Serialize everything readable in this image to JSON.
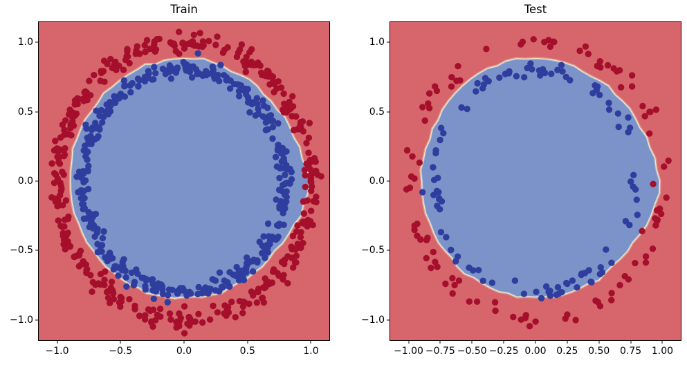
{
  "palette": {
    "background": "#ffffff",
    "axis_color": "#000000",
    "text_color": "#000000",
    "point_red": "#a50f2b",
    "point_blue": "#2f3d9e",
    "region_red": "#d6656c",
    "region_blue": "#7b93c8",
    "boundary_band_outer": "#e09a92",
    "boundary_band_mid": "#f6eec0",
    "boundary_band_inner": "#a6bedd"
  },
  "chart_data": [
    {
      "type": "scatter",
      "title": "Train",
      "xlabel": "",
      "ylabel": "",
      "xlim": [
        -1.15,
        1.15
      ],
      "ylim": [
        -1.15,
        1.15
      ],
      "grid": false,
      "legend": null,
      "x_ticks": [
        "−1.0",
        "−0.5",
        "0.0",
        "0.5",
        "1.0"
      ],
      "x_tick_values": [
        -1.0,
        -0.5,
        0.0,
        0.5,
        1.0
      ],
      "y_ticks": [
        "1.0",
        "0.5",
        "0.0",
        "−0.5",
        "−1.0"
      ],
      "y_tick_values": [
        1.0,
        0.5,
        0.0,
        -0.5,
        -1.0
      ],
      "marker_radius_px": 4.7,
      "series": [
        {
          "name": "class-0-outer-circle",
          "color": "#a50f2b",
          "ring_radius": 1.0,
          "radial_noise": 0.033,
          "n_points": 400,
          "seed": 11,
          "extra_points": []
        },
        {
          "name": "class-1-inner-circle",
          "color": "#2f3d9e",
          "ring_radius": 0.8,
          "radial_noise": 0.028,
          "n_points": 400,
          "seed": 22,
          "extra_points": [
            [
              0.11,
              0.92
            ]
          ]
        }
      ],
      "decision_boundary": {
        "outside_color": "#d6656c",
        "inside_color": "#7b93c8",
        "band_colors": [
          "#e09a92",
          "#f6eec0",
          "#a6bedd"
        ],
        "seed": 5,
        "radius_profile": [
          [
            0,
            0.975
          ],
          [
            15,
            0.93
          ],
          [
            40,
            0.885
          ],
          [
            70,
            0.875
          ],
          [
            90,
            0.875
          ],
          [
            120,
            0.88
          ],
          [
            150,
            0.885
          ],
          [
            180,
            0.89
          ],
          [
            210,
            0.87
          ],
          [
            240,
            0.845
          ],
          [
            270,
            0.835
          ],
          [
            300,
            0.845
          ],
          [
            330,
            0.88
          ],
          [
            348,
            0.95
          ]
        ]
      }
    },
    {
      "type": "scatter",
      "title": "Test",
      "xlabel": "",
      "ylabel": "",
      "xlim": [
        -1.15,
        1.15
      ],
      "ylim": [
        -1.15,
        1.15
      ],
      "grid": false,
      "legend": null,
      "x_ticks": [
        "−1.00",
        "−0.75",
        "−0.50",
        "−0.25",
        "0.00",
        "0.25",
        "0.50",
        "0.75",
        "1.00"
      ],
      "x_tick_values": [
        -1.0,
        -0.75,
        -0.5,
        -0.25,
        0.0,
        0.25,
        0.5,
        0.75,
        1.0
      ],
      "y_ticks": [
        "1.0",
        "0.5",
        "0.0",
        "−0.5",
        "−1.0"
      ],
      "y_tick_values": [
        1.0,
        0.5,
        0.0,
        -0.5,
        -1.0
      ],
      "marker_radius_px": 4.7,
      "series": [
        {
          "name": "class-0-outer-circle",
          "color": "#a50f2b",
          "ring_radius": 1.0,
          "radial_noise": 0.033,
          "n_points": 100,
          "seed": 33,
          "extra_points": [
            [
              0.84,
              -0.36
            ]
          ]
        },
        {
          "name": "class-1-inner-circle",
          "color": "#2f3d9e",
          "ring_radius": 0.8,
          "radial_noise": 0.028,
          "n_points": 100,
          "seed": 44,
          "extra_points": [
            [
              -0.89,
              -0.08
            ]
          ]
        }
      ],
      "decision_boundary": {
        "outside_color": "#d6656c",
        "inside_color": "#7b93c8",
        "band_colors": [
          "#e09a92",
          "#f6eec0",
          "#a6bedd"
        ],
        "seed": 6,
        "radius_profile": [
          [
            0,
            0.975
          ],
          [
            15,
            0.93
          ],
          [
            40,
            0.885
          ],
          [
            70,
            0.875
          ],
          [
            90,
            0.875
          ],
          [
            120,
            0.88
          ],
          [
            150,
            0.885
          ],
          [
            180,
            0.89
          ],
          [
            210,
            0.87
          ],
          [
            240,
            0.845
          ],
          [
            270,
            0.835
          ],
          [
            300,
            0.845
          ],
          [
            330,
            0.88
          ],
          [
            348,
            0.95
          ]
        ]
      }
    }
  ]
}
